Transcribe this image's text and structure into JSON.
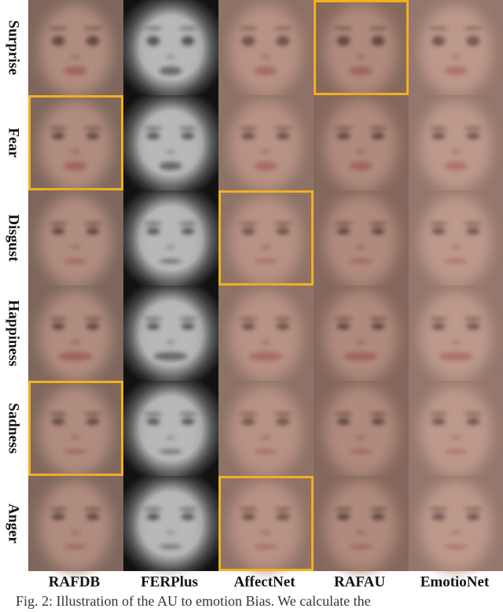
{
  "figure": {
    "columns": [
      "RAFDB",
      "FERPlus",
      "AffectNet",
      "RAFAU",
      "EmotioNet"
    ],
    "rows": [
      {
        "label": "Surprise",
        "highlighted": [
          false,
          false,
          false,
          true,
          false
        ]
      },
      {
        "label": "Fear",
        "highlighted": [
          true,
          false,
          false,
          false,
          false
        ]
      },
      {
        "label": "Disgust",
        "highlighted": [
          false,
          false,
          true,
          false,
          false
        ]
      },
      {
        "label": "Happiness",
        "highlighted": [
          false,
          false,
          false,
          false,
          false
        ]
      },
      {
        "label": "Sadness",
        "highlighted": [
          true,
          false,
          false,
          false,
          false
        ]
      },
      {
        "label": "Anger",
        "highlighted": [
          false,
          false,
          true,
          false,
          false
        ]
      }
    ],
    "caption": "Fig. 2: Illustration of the AU to emotion Bias. We calculate the"
  }
}
